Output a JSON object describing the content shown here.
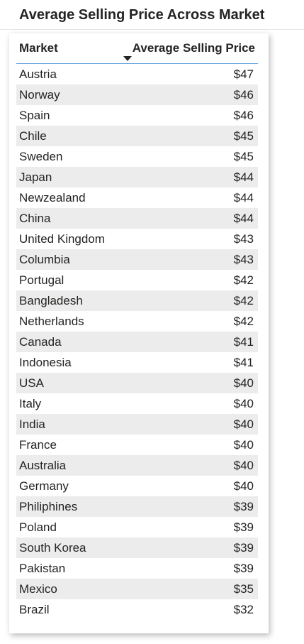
{
  "chart_data": {
    "type": "table",
    "title": "Average Selling Price Across Market",
    "columns": [
      "Market",
      "Average Selling Price"
    ],
    "sort": {
      "column": "Average Selling Price",
      "direction": "descending"
    },
    "rows": [
      {
        "market": "Austria",
        "price": "$47"
      },
      {
        "market": "Norway",
        "price": "$46"
      },
      {
        "market": "Spain",
        "price": "$46"
      },
      {
        "market": "Chile",
        "price": "$45"
      },
      {
        "market": "Sweden",
        "price": "$45"
      },
      {
        "market": "Japan",
        "price": "$44"
      },
      {
        "market": "Newzealand",
        "price": "$44"
      },
      {
        "market": "China",
        "price": "$44"
      },
      {
        "market": "United Kingdom",
        "price": "$43"
      },
      {
        "market": "Columbia",
        "price": "$43"
      },
      {
        "market": "Portugal",
        "price": "$42"
      },
      {
        "market": "Bangladesh",
        "price": "$42"
      },
      {
        "market": "Netherlands",
        "price": "$42"
      },
      {
        "market": "Canada",
        "price": "$41"
      },
      {
        "market": "Indonesia",
        "price": "$41"
      },
      {
        "market": "USA",
        "price": "$40"
      },
      {
        "market": "Italy",
        "price": "$40"
      },
      {
        "market": "India",
        "price": "$40"
      },
      {
        "market": "France",
        "price": "$40"
      },
      {
        "market": "Australia",
        "price": "$40"
      },
      {
        "market": "Germany",
        "price": "$40"
      },
      {
        "market": "Philiphines",
        "price": "$39"
      },
      {
        "market": "Poland",
        "price": "$39"
      },
      {
        "market": "South Korea",
        "price": "$39"
      },
      {
        "market": "Pakistan",
        "price": "$39"
      },
      {
        "market": "Mexico",
        "price": "$35"
      },
      {
        "market": "Brazil",
        "price": "$32"
      }
    ]
  },
  "colors": {
    "header_underline": "#6fa6e0",
    "band": "#ececec",
    "text": "#252423"
  },
  "icons": {
    "sort": "sort-descending-icon"
  }
}
